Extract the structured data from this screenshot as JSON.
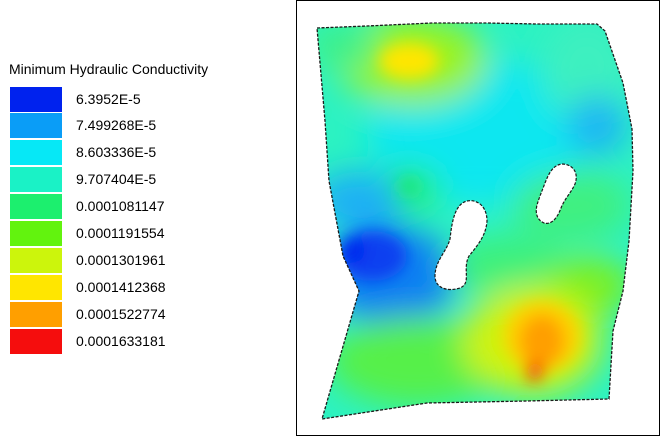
{
  "legend": {
    "title": "Minimum Hydraulic Conductivity",
    "entries": [
      {
        "label": "6.3952E-5",
        "color": "#0022ee"
      },
      {
        "label": "7.499268E-5",
        "color": "#0a9df7"
      },
      {
        "label": "8.603336E-5",
        "color": "#06e8f6"
      },
      {
        "label": "9.707404E-5",
        "color": "#1af2c6"
      },
      {
        "label": "0.0001081147",
        "color": "#1cef6e"
      },
      {
        "label": "0.0001191554",
        "color": "#62f30e"
      },
      {
        "label": "0.0001301961",
        "color": "#ccf50c"
      },
      {
        "label": "0.0001412368",
        "color": "#ffe600"
      },
      {
        "label": "0.0001522774",
        "color": "#ff9f00"
      },
      {
        "label": "0.0001633181",
        "color": "#f50d0d"
      }
    ]
  }
}
